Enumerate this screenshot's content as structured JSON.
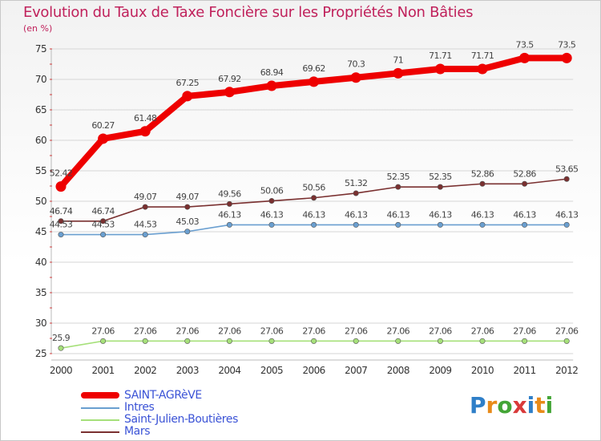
{
  "chart_data": {
    "type": "line",
    "title": "Evolution du Taux de Taxe Foncière sur les Propriétés Non Bâties",
    "ylabel": "(en %)",
    "xlabel": "",
    "categories": [
      "2000",
      "2001",
      "2002",
      "2003",
      "2004",
      "2005",
      "2006",
      "2007",
      "2008",
      "2009",
      "2010",
      "2011",
      "2012"
    ],
    "ylim": [
      25,
      75
    ],
    "yticks": [
      25,
      30,
      35,
      40,
      45,
      50,
      55,
      60,
      65,
      70,
      75
    ],
    "series": [
      {
        "name": "SAINT-AGRèVE",
        "color": "#ee0000",
        "values": [
          52.42,
          60.27,
          61.48,
          67.25,
          67.92,
          68.94,
          69.62,
          70.3,
          71,
          71.71,
          71.71,
          73.5,
          73.5
        ],
        "labels": [
          "52.42",
          "60.27",
          "61.48",
          "67.25",
          "67.92",
          "68.94",
          "69.62",
          "70.3",
          "71",
          "71.71",
          "71.71",
          "73.5",
          "73.5"
        ]
      },
      {
        "name": "Intres",
        "color": "#6a9fd0",
        "values": [
          44.53,
          44.53,
          44.53,
          45.03,
          46.13,
          46.13,
          46.13,
          46.13,
          46.13,
          46.13,
          46.13,
          46.13,
          46.13
        ],
        "labels": [
          "44.53",
          "44.53",
          "44.53",
          "45.03",
          "46.13",
          "46.13",
          "46.13",
          "46.13",
          "46.13",
          "46.13",
          "46.13",
          "46.13",
          "46.13"
        ]
      },
      {
        "name": "Saint-Julien-Boutières",
        "color": "#a6e07a",
        "values": [
          25.9,
          27.06,
          27.06,
          27.06,
          27.06,
          27.06,
          27.06,
          27.06,
          27.06,
          27.06,
          27.06,
          27.06,
          27.06
        ],
        "labels": [
          "25.9",
          "27.06",
          "27.06",
          "27.06",
          "27.06",
          "27.06",
          "27.06",
          "27.06",
          "27.06",
          "27.06",
          "27.06",
          "27.06",
          "27.06"
        ]
      },
      {
        "name": "Mars",
        "color": "#7a3030",
        "values": [
          46.74,
          46.74,
          49.07,
          49.07,
          49.56,
          50.06,
          50.56,
          51.32,
          52.35,
          52.35,
          52.86,
          52.86,
          53.65
        ],
        "labels": [
          "46.74",
          "46.74",
          "49.07",
          "49.07",
          "49.56",
          "50.06",
          "50.56",
          "51.32",
          "52.35",
          "52.35",
          "52.86",
          "52.86",
          "53.65"
        ]
      }
    ],
    "legend_position": "bottom-left"
  },
  "logo": {
    "text": "Proxiti"
  }
}
